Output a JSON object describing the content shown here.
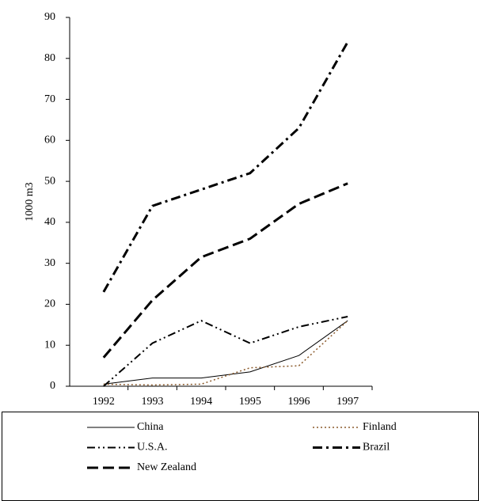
{
  "chart_data": {
    "type": "line",
    "y_label": "1000 m3",
    "categories": [
      "1992",
      "1993",
      "1994",
      "1995",
      "1996",
      "1997"
    ],
    "ylim": [
      0,
      90
    ],
    "yticks": [
      0,
      10,
      20,
      30,
      40,
      50,
      60,
      70,
      80,
      90
    ],
    "legend": "bottom",
    "series": [
      {
        "name": "China",
        "color": "#000000",
        "values": [
          0.5,
          2,
          2,
          3.5,
          7.5,
          16
        ]
      },
      {
        "name": "Finland",
        "color": "#8b5a2b",
        "values": [
          0.5,
          0.3,
          0.5,
          4.5,
          5,
          16
        ]
      },
      {
        "name": "U.S.A.",
        "color": "#000000",
        "values": [
          0,
          10.5,
          16,
          10.5,
          14.5,
          17
        ]
      },
      {
        "name": "Brazil",
        "color": "#000000",
        "values": [
          23,
          44,
          48,
          52,
          63,
          84
        ]
      },
      {
        "name": "New Zealand",
        "color": "#000000",
        "values": [
          7,
          21,
          31.5,
          36,
          44.5,
          49.5
        ]
      }
    ]
  }
}
